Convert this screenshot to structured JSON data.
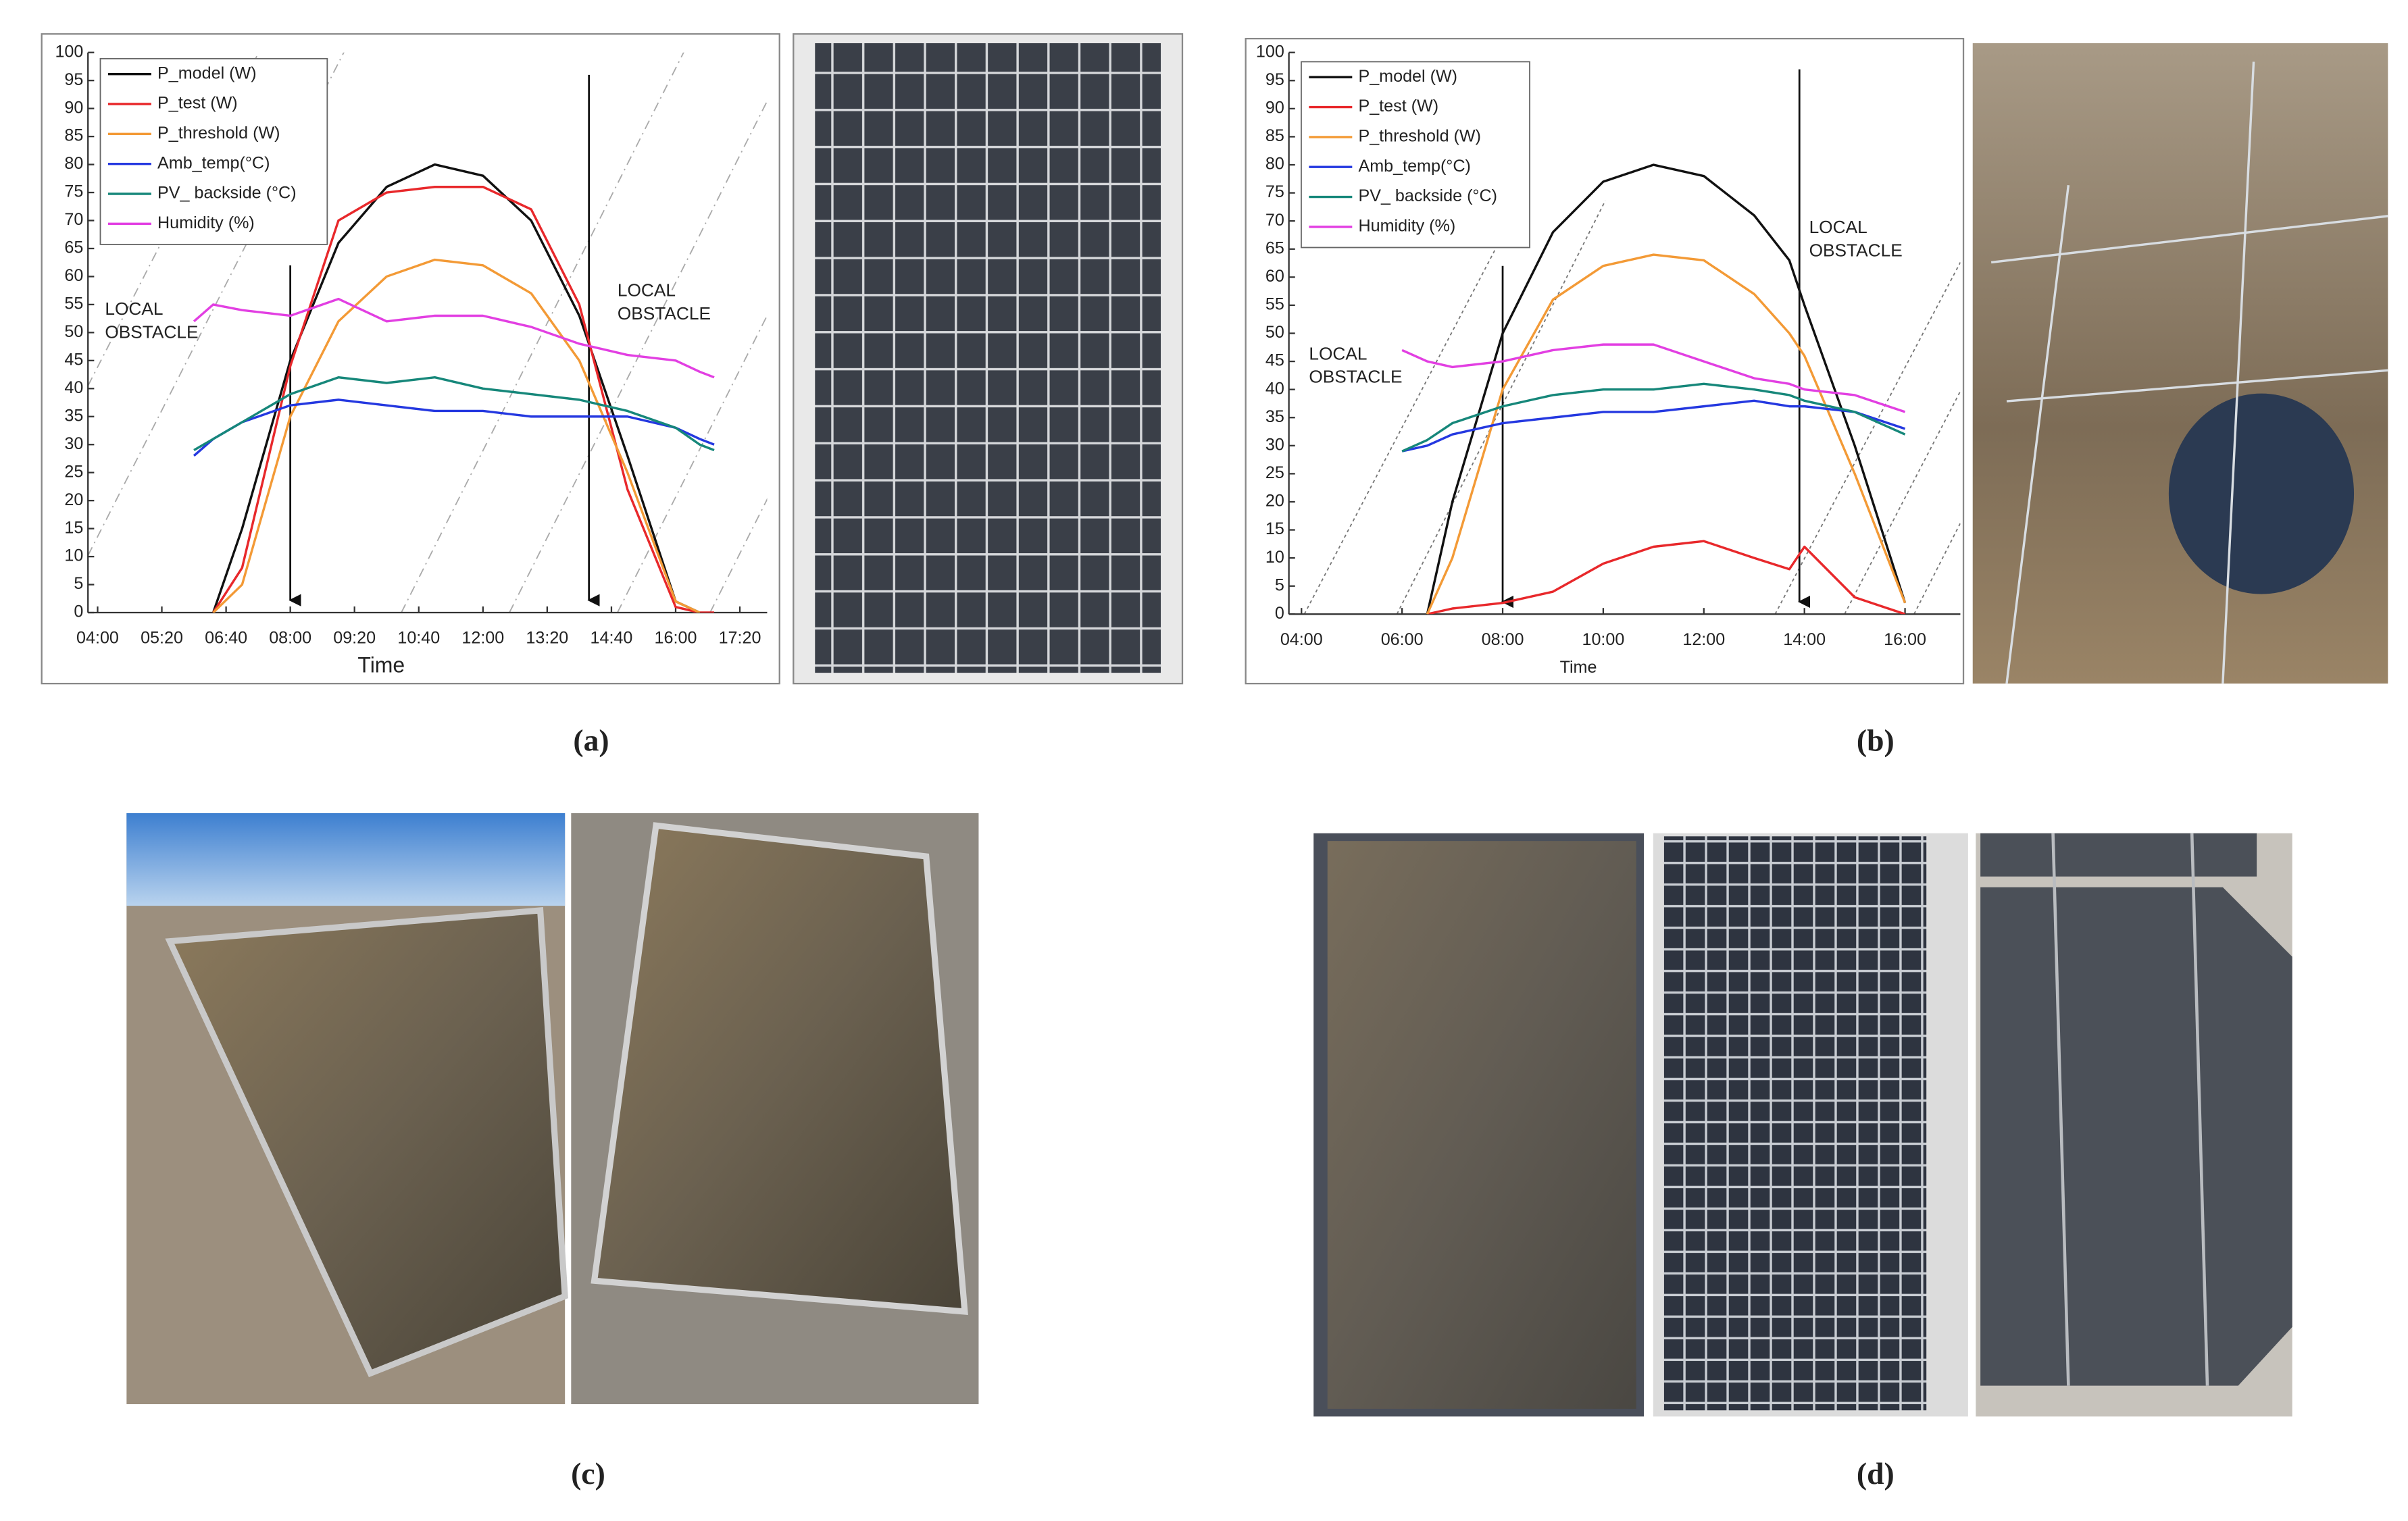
{
  "chart_data": [
    {
      "type": "line",
      "x_label": "Time",
      "x": [
        6,
        6.4,
        7,
        8,
        9,
        10,
        11,
        12,
        13,
        14,
        15,
        16,
        16.5,
        16.8
      ],
      "xlim": [
        3.8,
        17.9
      ],
      "xticks": [
        {
          "value": 4,
          "label": "04:00"
        },
        {
          "value": 5.333,
          "label": "05:20"
        },
        {
          "value": 6.667,
          "label": "06:40"
        },
        {
          "value": 8,
          "label": "08:00"
        },
        {
          "value": 9.333,
          "label": "09:20"
        },
        {
          "value": 10.667,
          "label": "10:40"
        },
        {
          "value": 12,
          "label": "12:00"
        },
        {
          "value": 13.333,
          "label": "13:20"
        },
        {
          "value": 14.667,
          "label": "14:40"
        },
        {
          "value": 16,
          "label": "16:00"
        },
        {
          "value": 17.333,
          "label": "17:20"
        }
      ],
      "ylim": [
        0,
        100
      ],
      "yticks": [
        0,
        5,
        10,
        15,
        20,
        25,
        30,
        35,
        40,
        45,
        50,
        55,
        60,
        65,
        70,
        75,
        80,
        85,
        90,
        95,
        100
      ],
      "grid": false,
      "legend": "upper left",
      "annotations": [
        [
          "LOCAL",
          "OBSTACLE"
        ],
        [
          "LOCAL",
          "OBSTACLE"
        ]
      ],
      "series": [
        {
          "name": "P_model (W)",
          "color": "#111111",
          "values": [
            null,
            0,
            15,
            45,
            66,
            76,
            80,
            78,
            70,
            53,
            28,
            2,
            0,
            null
          ]
        },
        {
          "name": "P_test (W)",
          "color": "#e8282b",
          "values": [
            null,
            0,
            8,
            44,
            70,
            75,
            76,
            76,
            72,
            55,
            22,
            1,
            0,
            0
          ]
        },
        {
          "name": "P_threshold (W)",
          "color": "#f39a36",
          "values": [
            null,
            0,
            5,
            35,
            52,
            60,
            63,
            62,
            57,
            45,
            25,
            2,
            0,
            null
          ]
        },
        {
          "name": "Amb_temp(°C)",
          "color": "#2438e0",
          "values": [
            28,
            31,
            34,
            37,
            38,
            37,
            36,
            36,
            35,
            35,
            35,
            33,
            31,
            30
          ]
        },
        {
          "name": "PV_ backside (°C)",
          "color": "#16877a",
          "values": [
            29,
            31,
            34,
            39,
            42,
            41,
            42,
            40,
            39,
            38,
            36,
            33,
            30,
            29
          ]
        },
        {
          "name": "Humidity (%)",
          "color": "#e23fe2",
          "values": [
            52,
            55,
            54,
            53,
            56,
            52,
            53,
            53,
            51,
            48,
            46,
            45,
            43,
            42
          ]
        }
      ]
    },
    {
      "type": "line",
      "x_label": "Time",
      "x": [
        6,
        6.5,
        7,
        8,
        9,
        10,
        11,
        12,
        13,
        13.7,
        14,
        15,
        16
      ],
      "xlim": [
        3.75,
        17.1
      ],
      "xticks": [
        {
          "value": 4,
          "label": "04:00"
        },
        {
          "value": 6,
          "label": "06:00"
        },
        {
          "value": 8,
          "label": "08:00"
        },
        {
          "value": 10,
          "label": "10:00"
        },
        {
          "value": 12,
          "label": "12:00"
        },
        {
          "value": 14,
          "label": "14:00"
        },
        {
          "value": 16,
          "label": "16:00"
        }
      ],
      "ylim": [
        0,
        100
      ],
      "yticks": [
        0,
        5,
        10,
        15,
        20,
        25,
        30,
        35,
        40,
        45,
        50,
        55,
        60,
        65,
        70,
        75,
        80,
        85,
        90,
        95,
        100
      ],
      "grid": false,
      "legend": "upper left",
      "annotations": [
        [
          "LOCAL",
          "OBSTACLE"
        ],
        [
          "LOCAL",
          "OBSTACLE"
        ]
      ],
      "series": [
        {
          "name": "P_model (W)",
          "color": "#111111",
          "values": [
            null,
            0,
            20,
            50,
            68,
            77,
            80,
            78,
            71,
            63,
            55,
            30,
            2
          ]
        },
        {
          "name": "P_test (W)",
          "color": "#e8282b",
          "values": [
            null,
            0,
            1,
            2,
            4,
            9,
            12,
            13,
            10,
            8,
            12,
            3,
            0
          ]
        },
        {
          "name": "P_threshold (W)",
          "color": "#f39a36",
          "values": [
            null,
            0,
            10,
            40,
            56,
            62,
            64,
            63,
            57,
            50,
            46,
            25,
            2
          ]
        },
        {
          "name": "Amb_temp(°C)",
          "color": "#2438e0",
          "values": [
            29,
            30,
            32,
            34,
            35,
            36,
            36,
            37,
            38,
            37,
            37,
            36,
            33
          ]
        },
        {
          "name": "PV_ backside (°C)",
          "color": "#16877a",
          "values": [
            29,
            31,
            34,
            37,
            39,
            40,
            40,
            41,
            40,
            39,
            38,
            36,
            32
          ]
        },
        {
          "name": "Humidity (%)",
          "color": "#e23fe2",
          "values": [
            47,
            45,
            44,
            45,
            47,
            48,
            48,
            45,
            42,
            41,
            40,
            39,
            36
          ]
        }
      ]
    }
  ],
  "panel_labels": [
    "(a)",
    "(b)",
    "(c)",
    "(d)"
  ]
}
